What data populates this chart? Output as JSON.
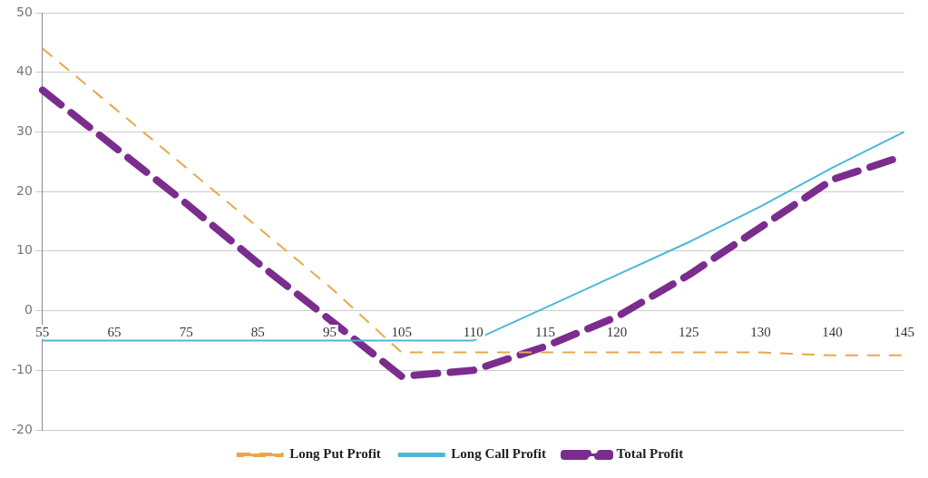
{
  "chart_data": {
    "type": "line",
    "categories": [
      "55",
      "65",
      "75",
      "85",
      "95",
      "105",
      "110",
      "115",
      "120",
      "125",
      "130",
      "140",
      "145"
    ],
    "series": [
      {
        "name": "Long Put Profit",
        "color": "#e8a848",
        "line_style": "dashed",
        "values": [
          44,
          34,
          24,
          14,
          4,
          -7,
          -7,
          -7,
          -7,
          -7,
          -7,
          -7.5,
          -7.5
        ]
      },
      {
        "name": "Long Call Profit",
        "color": "#4bb8d8",
        "line_style": "solid",
        "values": [
          -5,
          -5,
          -5,
          -5,
          -5,
          -5,
          -5,
          0.5,
          6,
          11.5,
          17.5,
          24,
          30
        ]
      },
      {
        "name": "Total Profit",
        "color": "#7b2d8e",
        "line_style": "dashed",
        "values": [
          37,
          27.5,
          18,
          8,
          -1.5,
          -11,
          -10,
          -6,
          -1,
          6,
          14,
          22,
          26
        ]
      }
    ],
    "ylim": [
      -20,
      50
    ],
    "yticks": [
      -20,
      -10,
      0,
      10,
      20,
      30,
      40,
      50
    ],
    "grid": "y",
    "legend": "bottom",
    "marker": "none"
  }
}
